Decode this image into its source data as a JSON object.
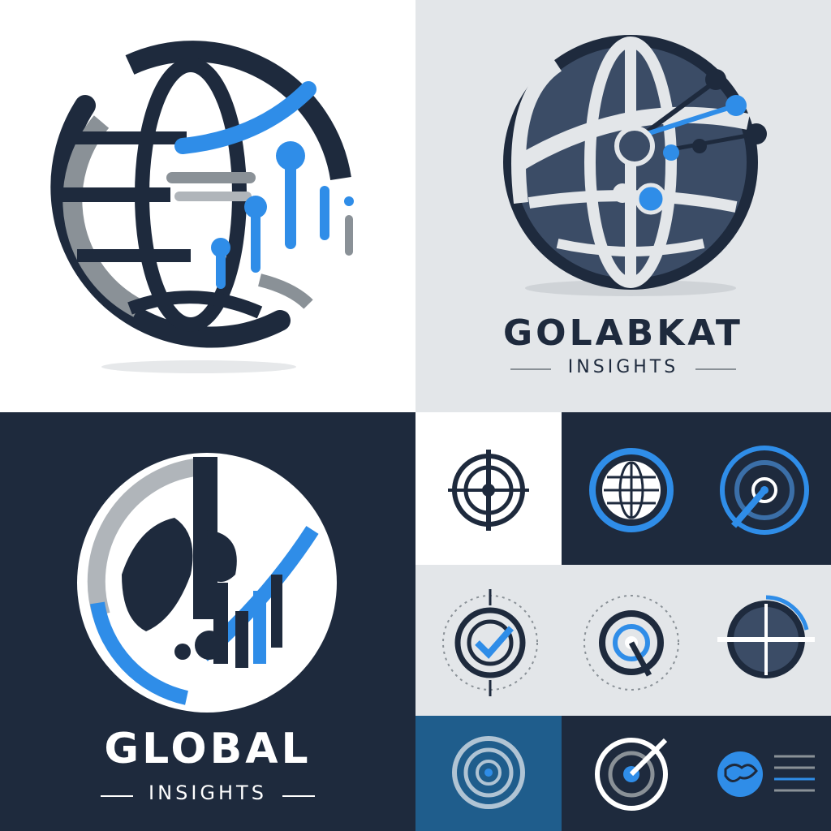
{
  "colors": {
    "navy": "#1e2a3d",
    "blue": "#2f8de8",
    "gray": "#8a9197",
    "light_bg": "#e3e6e9",
    "white": "#ffffff"
  },
  "panels": {
    "top_left": {
      "icon": "globe-data-bars-icon"
    },
    "top_right": {
      "icon": "globe-network-nodes-icon",
      "title": "GOLABKAT",
      "subtitle": "INSIGHTS"
    },
    "bottom_left": {
      "icon": "world-map-chart-icon",
      "title": "GLOBAL",
      "subtitle": "INSIGHTS"
    },
    "grid": [
      {
        "icon": "crosshair-target-icon"
      },
      {
        "icon": "globe-badge-icon"
      },
      {
        "icon": "radar-sweep-icon"
      },
      {
        "icon": "checkmark-dial-icon"
      },
      {
        "icon": "pointer-dial-icon"
      },
      {
        "icon": "split-globe-icon"
      },
      {
        "icon": "maze-circle-icon"
      },
      {
        "icon": "target-swoosh-icon"
      },
      {
        "icon": "brain-globe-icon"
      }
    ]
  }
}
